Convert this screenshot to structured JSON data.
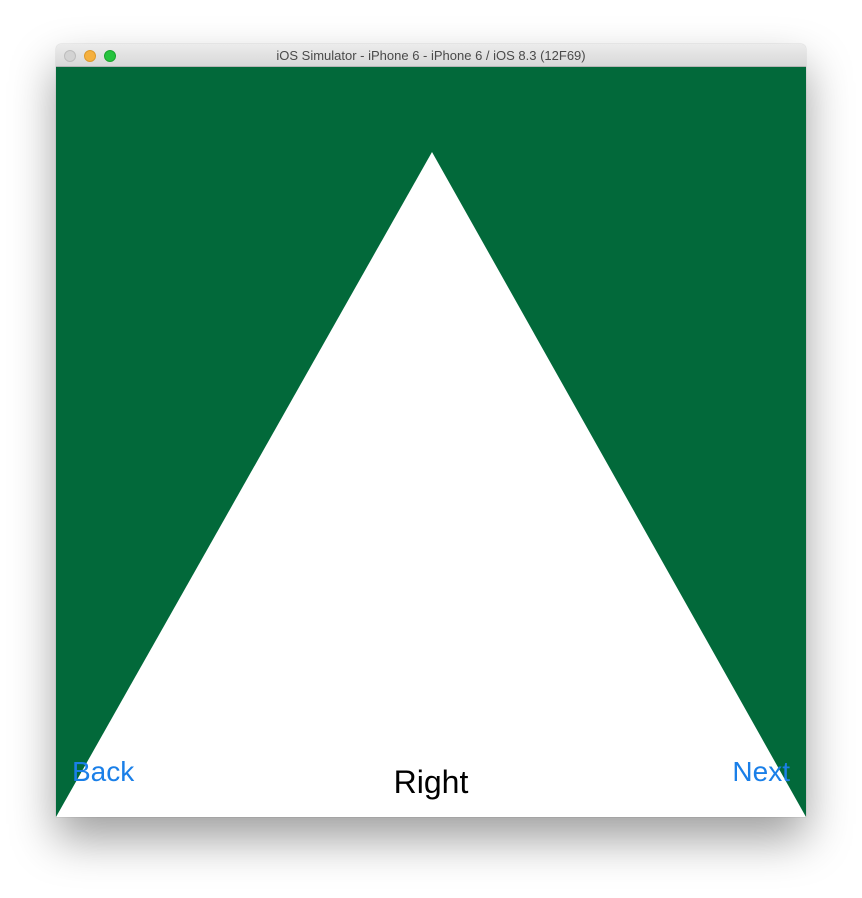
{
  "window": {
    "title": "iOS Simulator - iPhone 6 - iPhone 6 / iOS 8.3 (12F69)"
  },
  "screen": {
    "background_color": "#02693A",
    "shape_color": "#FFFFFF",
    "shape": "triangle",
    "title": "Right",
    "back_label": "Back",
    "next_label": "Next",
    "button_color": "#1A7FE8"
  }
}
